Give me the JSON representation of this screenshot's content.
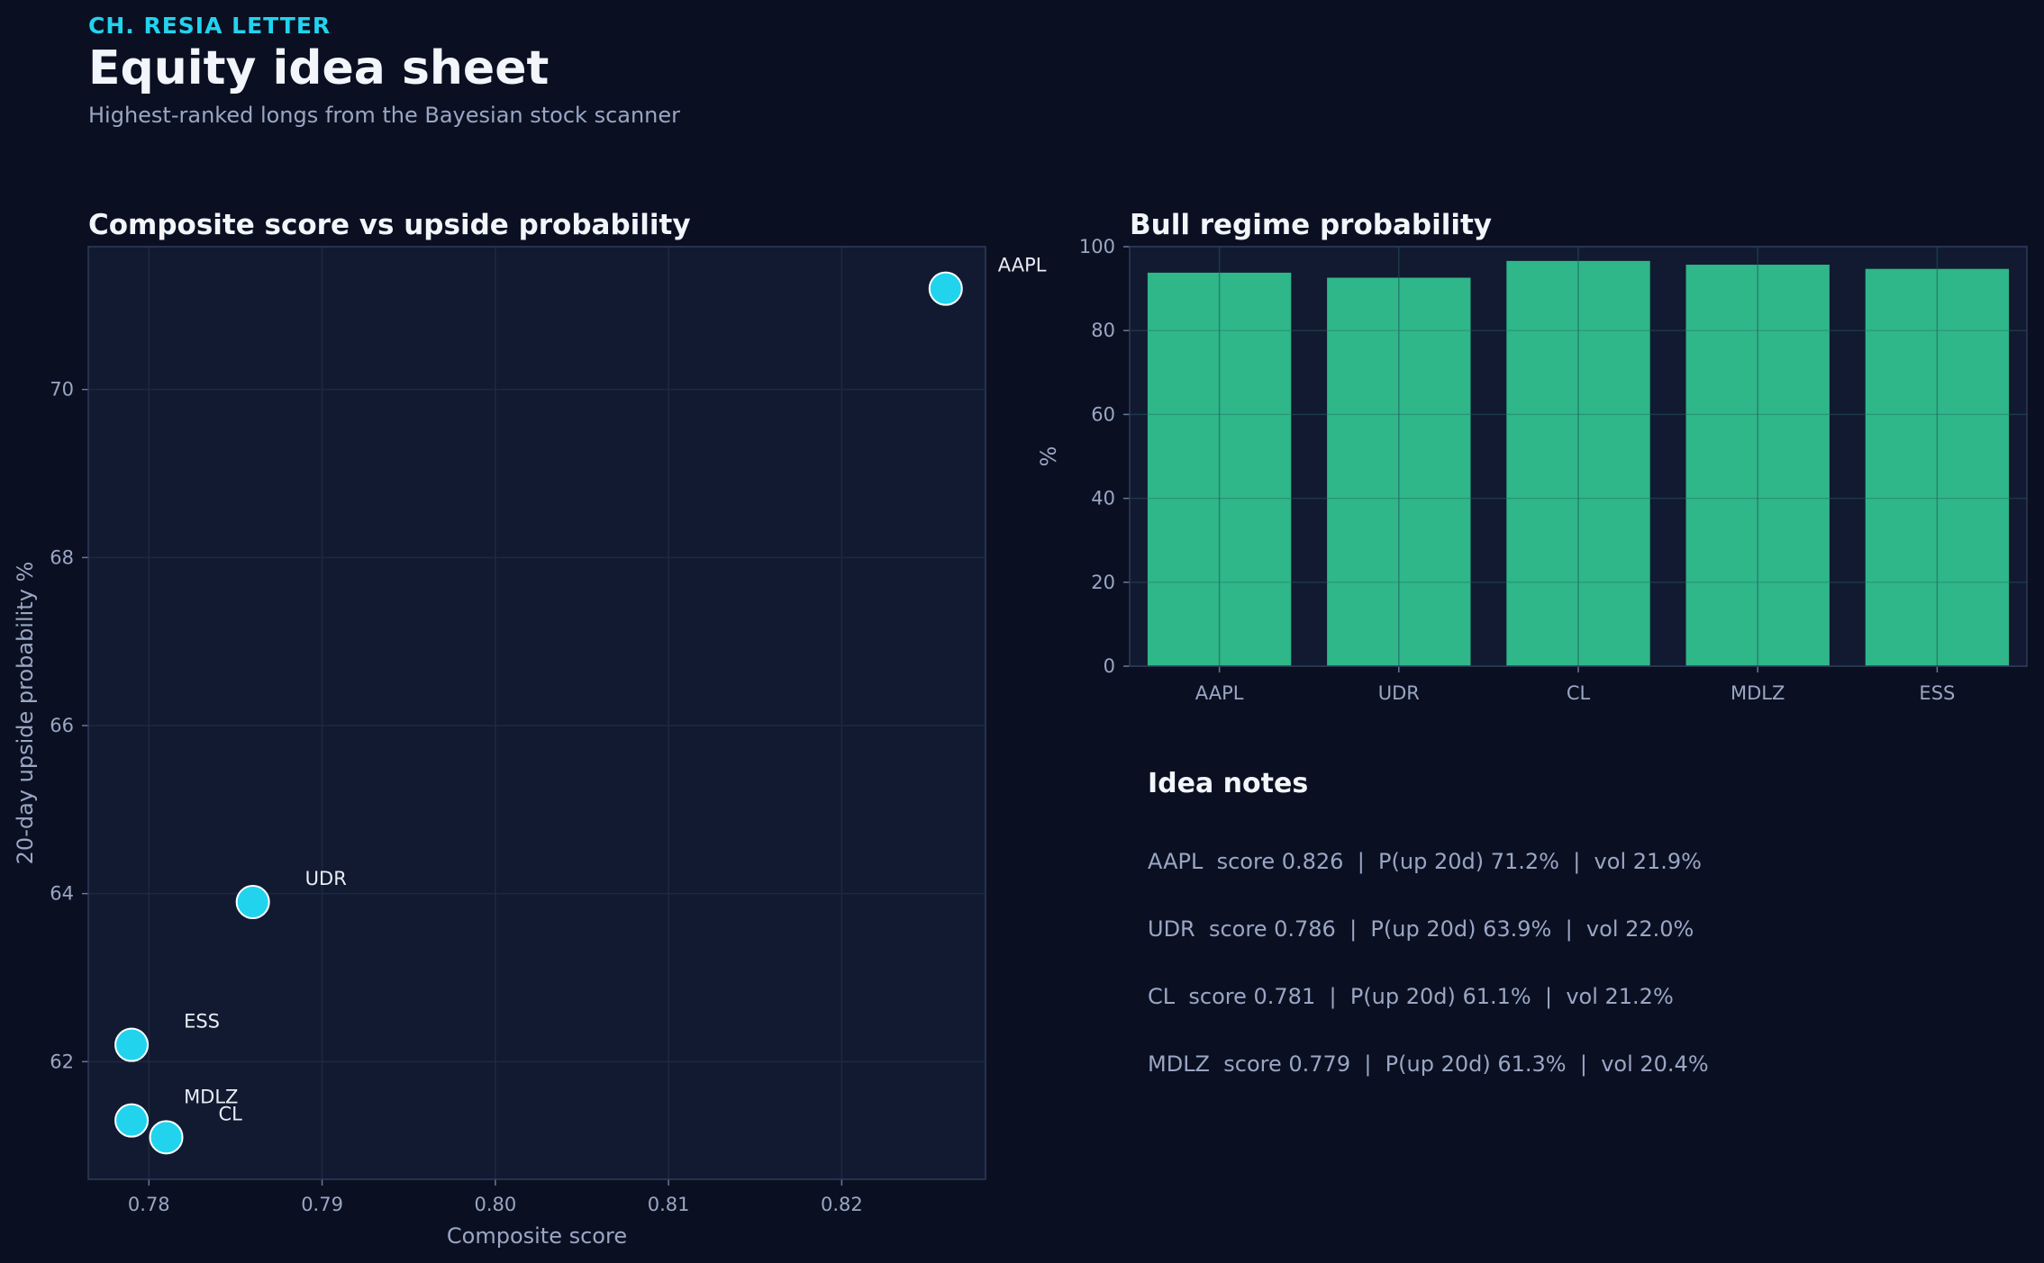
{
  "header": {
    "kicker": "CH. RESIA LETTER",
    "title": "Equity idea sheet",
    "subtitle": "Highest-ranked longs from the Bayesian stock scanner"
  },
  "colors": {
    "background": "#0a1022",
    "panel": "#111a30",
    "grid": "#1d2942",
    "accent": "#22d3ee",
    "bar": "#2fb689",
    "muted_text": "#9aa6c3"
  },
  "chart_data": [
    {
      "type": "scatter",
      "title": "Composite score vs upside probability",
      "xlabel": "Composite score",
      "ylabel": "20-day upside probability %",
      "xlim": [
        0.7765,
        0.8283
      ],
      "ylim": [
        60.6,
        71.7
      ],
      "xticks": [
        0.78,
        0.79,
        0.8,
        0.81,
        0.82
      ],
      "xtick_labels": [
        "0.78",
        "0.79",
        "0.80",
        "0.81",
        "0.82"
      ],
      "yticks": [
        62,
        64,
        66,
        68,
        70
      ],
      "ytick_labels": [
        "62",
        "64",
        "66",
        "68",
        "70"
      ],
      "grid": true,
      "points": [
        {
          "label": "AAPL",
          "x": 0.826,
          "y": 71.2
        },
        {
          "label": "UDR",
          "x": 0.786,
          "y": 63.9
        },
        {
          "label": "ESS",
          "x": 0.779,
          "y": 62.2
        },
        {
          "label": "MDLZ",
          "x": 0.779,
          "y": 61.3
        },
        {
          "label": "CL",
          "x": 0.781,
          "y": 61.1
        }
      ]
    },
    {
      "type": "bar",
      "title": "Bull regime probability",
      "xlabel": "",
      "ylabel": "%",
      "ylim": [
        0,
        100
      ],
      "yticks": [
        0,
        20,
        40,
        60,
        80,
        100
      ],
      "ytick_labels": [
        "0",
        "20",
        "40",
        "60",
        "80",
        "100"
      ],
      "grid": true,
      "categories": [
        "AAPL",
        "UDR",
        "CL",
        "MDLZ",
        "ESS"
      ],
      "values": [
        93.8,
        92.6,
        96.6,
        95.7,
        94.7
      ]
    }
  ],
  "notes": {
    "title": "Idea notes",
    "lines": [
      "AAPL  score 0.826  |  P(up 20d) 71.2%  |  vol 21.9%",
      "UDR  score 0.786  |  P(up 20d) 63.9%  |  vol 22.0%",
      "CL  score 0.781  |  P(up 20d) 61.1%  |  vol 21.2%",
      "MDLZ  score 0.779  |  P(up 20d) 61.3%  |  vol 20.4%"
    ]
  }
}
